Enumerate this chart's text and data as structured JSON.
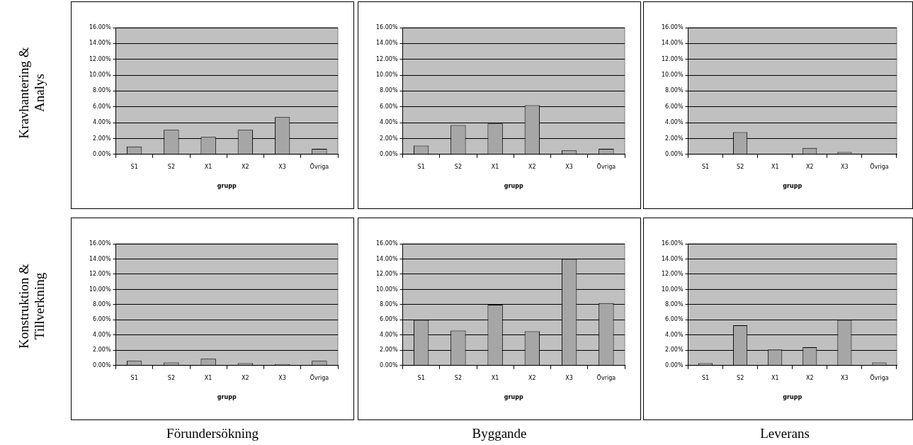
{
  "chart_data": [
    {
      "type": "bar",
      "ylabel": "Kravhantering & Analys",
      "xlabel": "grupp",
      "categories": [
        "S1",
        "S2",
        "X1",
        "X2",
        "X3",
        "Övriga"
      ],
      "values": [
        1.0,
        3.1,
        2.2,
        3.1,
        4.7,
        0.7
      ],
      "color": "#a6a6a6",
      "ylim": [
        0,
        16
      ],
      "yticks": [
        {
          "value": 0,
          "label": "0.00%"
        },
        {
          "value": 2,
          "label": "2.00%"
        },
        {
          "value": 4,
          "label": "4.00%"
        },
        {
          "value": 6,
          "label": "6.00%"
        },
        {
          "value": 8,
          "label": "8.00%"
        },
        {
          "value": 10,
          "label": "10.00%"
        },
        {
          "value": 12,
          "label": "12.00%"
        },
        {
          "value": 14,
          "label": "14.00%"
        },
        {
          "value": 16,
          "label": "16.00%"
        }
      ],
      "grid": "y",
      "legend": false
    },
    {
      "type": "bar",
      "xlabel": "grupp",
      "categories": [
        "S1",
        "S2",
        "X1",
        "X2",
        "X3",
        "Övriga"
      ],
      "values": [
        1.1,
        3.7,
        3.9,
        6.2,
        0.5,
        0.7
      ],
      "color": "#a6a6a6",
      "ylim": [
        0,
        16
      ],
      "yticks": [
        {
          "value": 0,
          "label": "0.00%"
        },
        {
          "value": 2,
          "label": "2.00%"
        },
        {
          "value": 4,
          "label": "4.00%"
        },
        {
          "value": 6,
          "label": "6.00%"
        },
        {
          "value": 8,
          "label": "8.00%"
        },
        {
          "value": 10,
          "label": "10.00%"
        },
        {
          "value": 12,
          "label": "12.00%"
        },
        {
          "value": 14,
          "label": "14.00%"
        },
        {
          "value": 16,
          "label": "16.00%"
        }
      ],
      "grid": "y",
      "legend": false
    },
    {
      "type": "bar",
      "xlabel": "grupp",
      "categories": [
        "S1",
        "S2",
        "X1",
        "X2",
        "X3",
        "Övriga"
      ],
      "values": [
        0,
        2.8,
        0,
        0.8,
        0.3,
        0
      ],
      "color": "#a6a6a6",
      "ylim": [
        0,
        16
      ],
      "yticks": [
        {
          "value": 0,
          "label": "0.00%"
        },
        {
          "value": 2,
          "label": "2.00%"
        },
        {
          "value": 4,
          "label": "4.00%"
        },
        {
          "value": 6,
          "label": "6.00%"
        },
        {
          "value": 8,
          "label": "8.00%"
        },
        {
          "value": 10,
          "label": "10.00%"
        },
        {
          "value": 12,
          "label": "12.00%"
        },
        {
          "value": 14,
          "label": "14.00%"
        },
        {
          "value": 16,
          "label": "16.00%"
        }
      ],
      "grid": "y",
      "legend": false
    },
    {
      "type": "bar",
      "ylabel": "Konstruktion & Tillverkning",
      "xlabel": "grupp",
      "categories": [
        "S1",
        "S2",
        "X1",
        "X2",
        "X3",
        "Övriga"
      ],
      "values": [
        0.6,
        0.4,
        0.9,
        0.3,
        0.2,
        0.6
      ],
      "color": "#a6a6a6",
      "ylim": [
        0,
        16
      ],
      "yticks": [
        {
          "value": 0,
          "label": "0.00%"
        },
        {
          "value": 2,
          "label": "2.00%"
        },
        {
          "value": 4,
          "label": "4.00%"
        },
        {
          "value": 6,
          "label": "6.00%"
        },
        {
          "value": 8,
          "label": "8.00%"
        },
        {
          "value": 10,
          "label": "10.00%"
        },
        {
          "value": 12,
          "label": "12.00%"
        },
        {
          "value": 14,
          "label": "14.00%"
        },
        {
          "value": 16,
          "label": "16.00%"
        }
      ],
      "grid": "y",
      "legend": false,
      "annotations": [
        "Förundersökning"
      ]
    },
    {
      "type": "bar",
      "xlabel": "grupp",
      "categories": [
        "S1",
        "S2",
        "X1",
        "X2",
        "X3",
        "Övriga"
      ],
      "values": [
        6.0,
        4.6,
        8.0,
        4.5,
        14.0,
        8.2
      ],
      "color": "#a6a6a6",
      "ylim": [
        0,
        16
      ],
      "yticks": [
        {
          "value": 0,
          "label": "0.00%"
        },
        {
          "value": 2,
          "label": "2.00%"
        },
        {
          "value": 4,
          "label": "4.00%"
        },
        {
          "value": 6,
          "label": "6.00%"
        },
        {
          "value": 8,
          "label": "8.00%"
        },
        {
          "value": 10,
          "label": "10.00%"
        },
        {
          "value": 12,
          "label": "12.00%"
        },
        {
          "value": 14,
          "label": "14.00%"
        },
        {
          "value": 16,
          "label": "16.00%"
        }
      ],
      "grid": "y",
      "legend": false,
      "annotations": [
        "Byggande"
      ]
    },
    {
      "type": "bar",
      "xlabel": "grupp",
      "categories": [
        "S1",
        "S2",
        "X1",
        "X2",
        "X3",
        "Övriga"
      ],
      "values": [
        0.3,
        5.3,
        2.1,
        2.4,
        6.0,
        0.4
      ],
      "color": "#a6a6a6",
      "ylim": [
        0,
        16
      ],
      "yticks": [
        {
          "value": 0,
          "label": "0.00%"
        },
        {
          "value": 2,
          "label": "2.00%"
        },
        {
          "value": 4,
          "label": "4.00%"
        },
        {
          "value": 6,
          "label": "6.00%"
        },
        {
          "value": 8,
          "label": "8.00%"
        },
        {
          "value": 10,
          "label": "10.00%"
        },
        {
          "value": 12,
          "label": "12.00%"
        },
        {
          "value": 14,
          "label": "14.00%"
        },
        {
          "value": 16,
          "label": "16.00%"
        }
      ],
      "grid": "y",
      "legend": false,
      "annotations": [
        "Leverans"
      ]
    }
  ]
}
